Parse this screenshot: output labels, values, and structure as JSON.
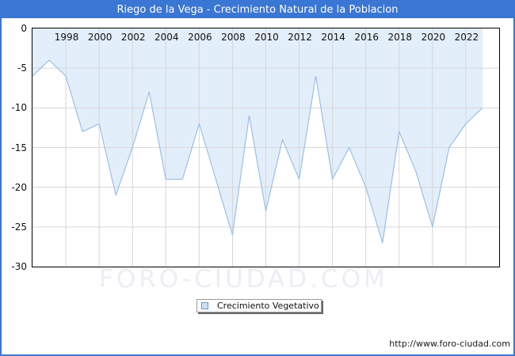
{
  "window": {
    "border_color": "#3a76d3"
  },
  "header": {
    "title": "Riego de la Vega - Crecimiento Natural de la Poblacion",
    "bg_color": "#3a76d3",
    "text_color": "#ffffff"
  },
  "chart_data": {
    "type": "area",
    "title": "Riego de la Vega - Crecimiento Natural de la Poblacion",
    "x": [
      1996,
      1997,
      1998,
      1999,
      2000,
      2001,
      2002,
      2003,
      2004,
      2005,
      2006,
      2007,
      2008,
      2009,
      2010,
      2011,
      2012,
      2013,
      2014,
      2015,
      2016,
      2017,
      2018,
      2019,
      2020,
      2021,
      2022,
      2023
    ],
    "series": [
      {
        "name": "Crecimiento Vegetativo",
        "values": [
          -6,
          -4,
          -6,
          -13,
          -12,
          -21,
          -15,
          -8,
          -19,
          -19,
          -12,
          -19,
          -26,
          -11,
          -23,
          -14,
          -19,
          -6,
          -19,
          -15,
          -20,
          -27,
          -13,
          -18,
          -25,
          -15,
          -12,
          -10
        ]
      }
    ],
    "xlim": [
      1996,
      2024
    ],
    "ylim": [
      -30,
      0
    ],
    "xticks": [
      1998,
      2000,
      2002,
      2004,
      2006,
      2008,
      2010,
      2012,
      2014,
      2016,
      2018,
      2020,
      2022
    ],
    "yticks": [
      0,
      -5,
      -10,
      -15,
      -20,
      -25,
      -30
    ],
    "grid": true,
    "legend_position": "bottom-center",
    "fill_mode": "above-line-to-zero",
    "colors": {
      "fill": "#e3eefb",
      "line": "#9cbfe8",
      "grid": "#d6d6d6",
      "plot_border": "#000000",
      "tick_text": "#111111"
    }
  },
  "legend": {
    "label": "Crecimiento Vegetativo",
    "swatch_fill": "#cfe0f4",
    "swatch_border": "#6b96c8"
  },
  "watermark": {
    "text": "FORO-CIUDAD.COM",
    "color": "#ededf5"
  },
  "footer": {
    "url": "http://www.foro-ciudad.com"
  }
}
